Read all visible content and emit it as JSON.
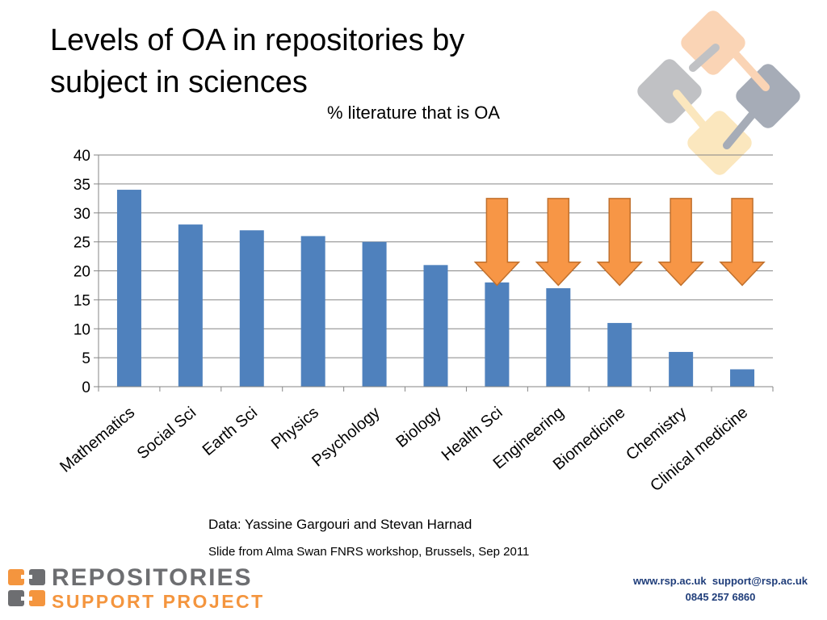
{
  "slide": {
    "title_line1": "Levels of OA in repositories by",
    "title_line2": "subject in sciences"
  },
  "chart_data": {
    "type": "bar",
    "title": "% literature that is OA",
    "categories": [
      "Mathematics",
      "Social Sci",
      "Earth Sci",
      "Physics",
      "Psychology",
      "Biology",
      "Health Sci",
      "Engineering",
      "Biomedicine",
      "Chemistry",
      "Clinical medicine"
    ],
    "values": [
      34,
      28,
      27,
      26,
      25,
      21,
      18,
      17,
      11,
      6,
      3
    ],
    "ylim": [
      0,
      40
    ],
    "yticks": [
      0,
      5,
      10,
      15,
      20,
      25,
      30,
      35,
      40
    ],
    "grid": true,
    "legend": "none",
    "bar_color": "#4f81bd",
    "arrow_color": "#f79646",
    "arrow_categories": [
      "Health Sci",
      "Engineering",
      "Biomedicine",
      "Chemistry",
      "Clinical medicine"
    ]
  },
  "credits": {
    "data": "Data: Yassine Gargouri and Stevan Harnad",
    "slide": "Slide from Alma Swan FNRS workshop, Brussels, Sep 2011"
  },
  "footer": {
    "brand_top": "REPOSITORIES",
    "brand_bottom": "SUPPORT PROJECT",
    "website": "www.rsp.ac.uk",
    "email": "support@rsp.ac.uk",
    "phone": "0845 257 6860"
  },
  "colors": {
    "brand_gray": "#6d6e71",
    "brand_orange": "#f4953e",
    "contact_blue": "#1f3d7a"
  }
}
